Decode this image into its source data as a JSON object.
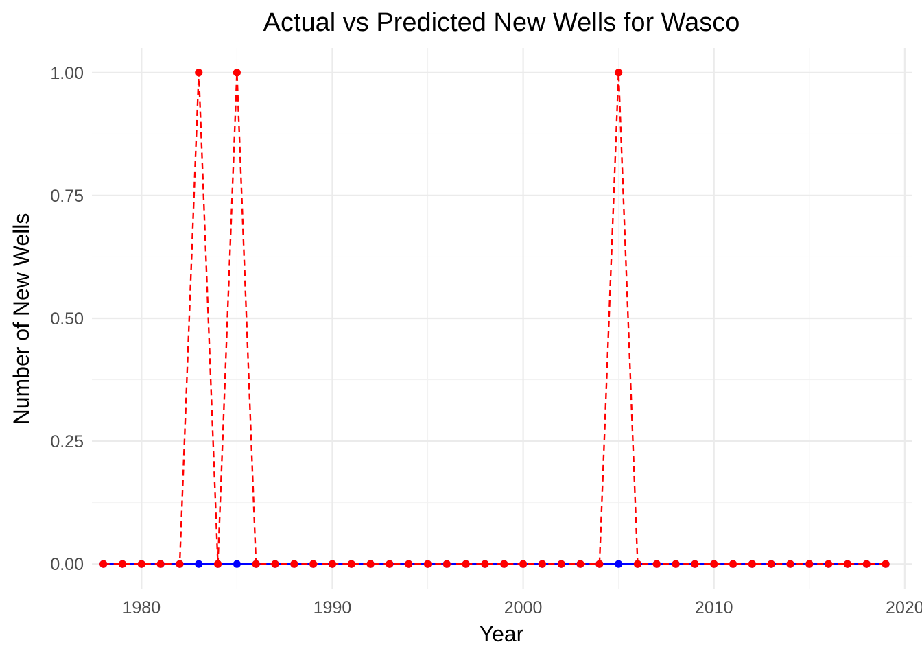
{
  "chart_data": {
    "type": "line",
    "title": "Actual vs Predicted New Wells for Wasco",
    "xlabel": "Year",
    "ylabel": "Number of New Wells",
    "x": [
      1978,
      1979,
      1980,
      1981,
      1982,
      1983,
      1984,
      1985,
      1986,
      1987,
      1988,
      1989,
      1990,
      1991,
      1992,
      1993,
      1994,
      1995,
      1996,
      1997,
      1998,
      1999,
      2000,
      2001,
      2002,
      2003,
      2004,
      2005,
      2006,
      2007,
      2008,
      2009,
      2010,
      2011,
      2012,
      2013,
      2014,
      2015,
      2016,
      2017,
      2018,
      2019
    ],
    "xlim": [
      1977.4,
      2020.4
    ],
    "ylim": [
      -0.05,
      1.05
    ],
    "x_ticks": [
      1980,
      1990,
      2000,
      2010,
      2020
    ],
    "x_tick_labels": [
      "1980",
      "1990",
      "2000",
      "2010",
      "2020"
    ],
    "x_minor_ticks": [
      1985,
      1995,
      2005,
      2015
    ],
    "y_ticks": [
      0.0,
      0.25,
      0.5,
      0.75,
      1.0
    ],
    "y_tick_labels": [
      "0.00",
      "0.25",
      "0.50",
      "0.75",
      "1.00"
    ],
    "y_minor_ticks": [
      0.125,
      0.375,
      0.625,
      0.875
    ],
    "grid": true,
    "legend": "none",
    "series": [
      {
        "color": "#0000ff",
        "line_style": "solid",
        "values": [
          0,
          0,
          0,
          0,
          0,
          0,
          0,
          0,
          0,
          0,
          0,
          0,
          0,
          0,
          0,
          0,
          0,
          0,
          0,
          0,
          0,
          0,
          0,
          0,
          0,
          0,
          0,
          0,
          0,
          0,
          0,
          0,
          0,
          0,
          0,
          0,
          0,
          0,
          0,
          0,
          0,
          0
        ]
      },
      {
        "color": "#ff0000",
        "line_style": "dashed",
        "values": [
          0,
          0,
          0,
          0,
          0,
          1,
          0,
          1,
          0,
          0,
          0,
          0,
          0,
          0,
          0,
          0,
          0,
          0,
          0,
          0,
          0,
          0,
          0,
          0,
          0,
          0,
          0,
          1,
          0,
          0,
          0,
          0,
          0,
          0,
          0,
          0,
          0,
          0,
          0,
          0,
          0,
          0
        ]
      }
    ]
  }
}
